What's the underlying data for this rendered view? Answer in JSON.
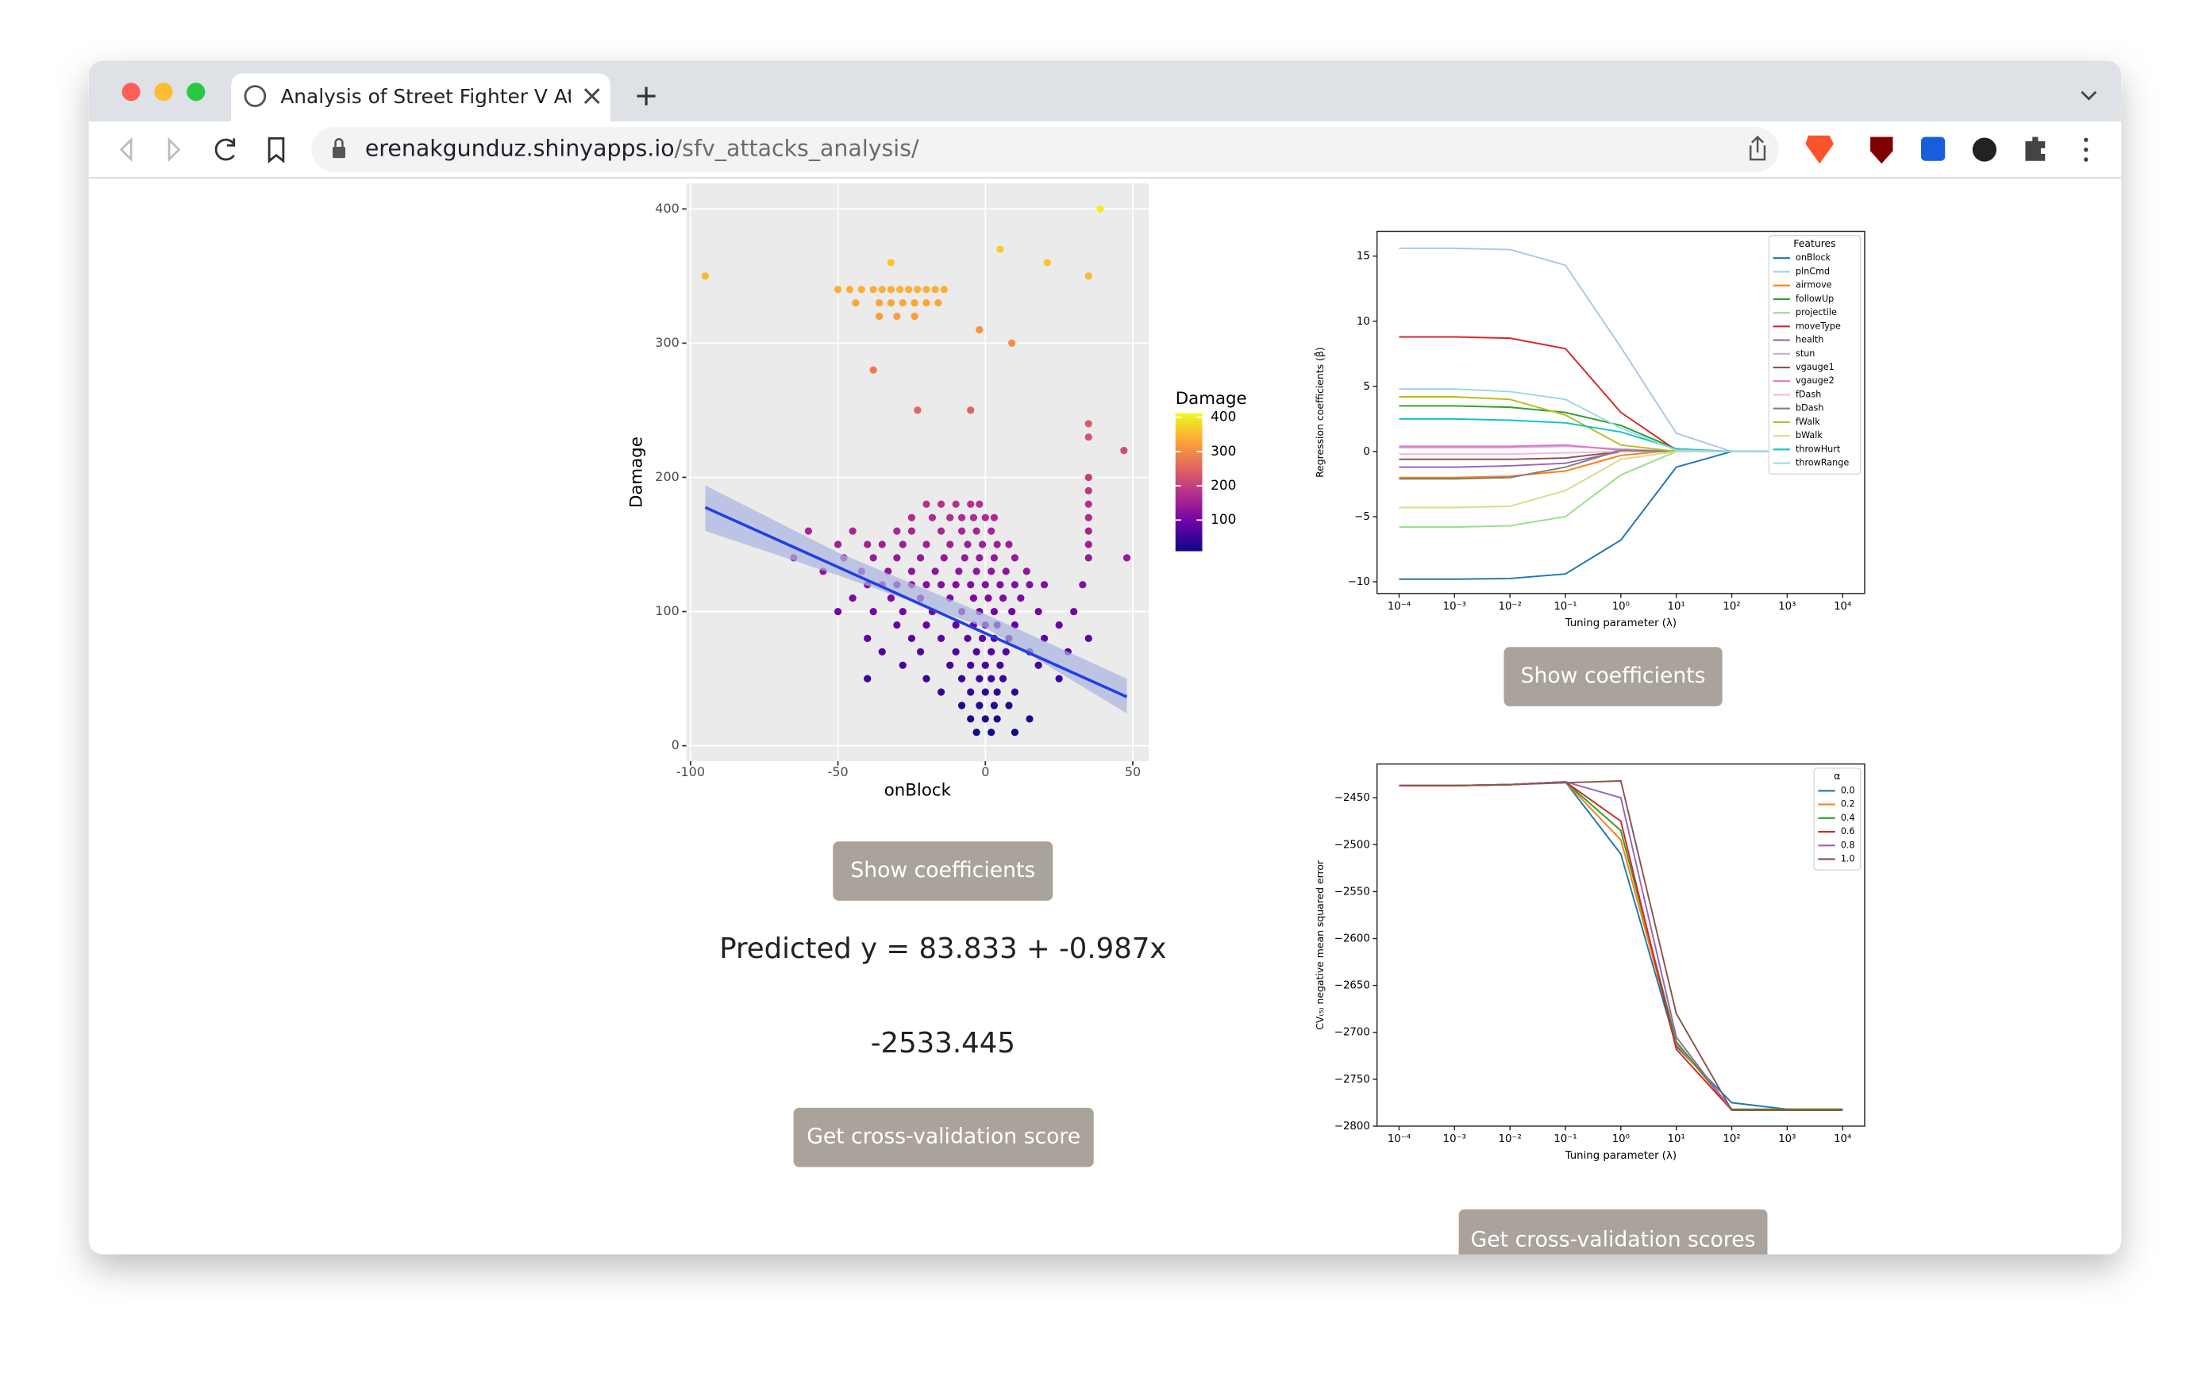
{
  "browser": {
    "tab_title": "Analysis of Street Fighter V Atta",
    "url_host": "erenakgunduz.shinyapps.io",
    "url_path": "/sfv_attacks_analysis/"
  },
  "app": {
    "show_coef_button": "Show coefficients",
    "prediction_text": "Predicted y = 83.833 + -0.987x",
    "cv_score": -2533.445,
    "cv_button": "Get cross-validation score",
    "show_coef_button_2": "Show coefficients",
    "cv_scores_button": "Get cross-validation scores"
  },
  "chart_data": [
    {
      "type": "scatter",
      "x_label": "onBlock",
      "y_label": "Damage",
      "xlim": [
        -101.4,
        55.4
      ],
      "ylim": [
        -11.5,
        419
      ],
      "xticks": [
        -100,
        -50,
        0,
        50
      ],
      "yticks": [
        0,
        100,
        200,
        300,
        400
      ],
      "grid": true,
      "x": [
        -95,
        -50,
        -46,
        -42,
        -38,
        -35,
        -32,
        -29,
        -26,
        -23,
        -20,
        -17,
        -14,
        -44,
        -36,
        -32,
        -28,
        -24,
        -20,
        -16,
        -36,
        -30,
        -24,
        -32,
        -38,
        -23,
        -2,
        5,
        9,
        21,
        35,
        39,
        35,
        35,
        47,
        48,
        -5,
        35,
        35,
        35,
        35,
        35,
        35,
        35,
        -20,
        -15,
        -10,
        -5,
        -2,
        -25,
        -18,
        -12,
        -8,
        -4,
        0,
        3,
        -60,
        -45,
        -30,
        -25,
        -15,
        -8,
        -3,
        2,
        -50,
        -40,
        -35,
        -28,
        -20,
        -12,
        -6,
        -1,
        4,
        8,
        -65,
        -48,
        -38,
        -30,
        -22,
        -14,
        -7,
        -2,
        3,
        10,
        -55,
        -42,
        -33,
        -25,
        -17,
        -9,
        -3,
        2,
        7,
        14,
        -40,
        -35,
        -30,
        -25,
        -20,
        -15,
        -10,
        -5,
        0,
        5,
        10,
        15,
        20,
        33,
        -45,
        -32,
        -22,
        -12,
        -4,
        1,
        6,
        12,
        -50,
        -38,
        -28,
        -18,
        -8,
        -2,
        3,
        9,
        18,
        30,
        -30,
        -20,
        -10,
        -4,
        0,
        4,
        10,
        25,
        -40,
        -25,
        -15,
        -6,
        -1,
        3,
        8,
        20,
        35,
        -35,
        -22,
        -10,
        -3,
        2,
        7,
        15,
        28,
        -28,
        -12,
        -5,
        0,
        5,
        18,
        -40,
        -20,
        -8,
        -2,
        2,
        6,
        25,
        -15,
        -5,
        0,
        4,
        10,
        -8,
        -2,
        3,
        8,
        -5,
        0,
        4,
        15,
        -3,
        2,
        10
      ],
      "values": [
        350,
        340,
        340,
        340,
        340,
        340,
        340,
        340,
        340,
        340,
        340,
        340,
        340,
        330,
        330,
        330,
        330,
        330,
        330,
        330,
        320,
        320,
        320,
        360,
        280,
        250,
        310,
        370,
        300,
        360,
        350,
        400,
        240,
        230,
        220,
        140,
        250,
        200,
        190,
        180,
        170,
        160,
        150,
        140,
        180,
        180,
        180,
        180,
        180,
        170,
        170,
        170,
        170,
        170,
        170,
        170,
        160,
        160,
        160,
        160,
        160,
        160,
        160,
        160,
        150,
        150,
        150,
        150,
        150,
        150,
        150,
        150,
        150,
        150,
        140,
        140,
        140,
        140,
        140,
        140,
        140,
        140,
        140,
        140,
        130,
        130,
        130,
        130,
        130,
        130,
        130,
        130,
        130,
        130,
        120,
        120,
        120,
        120,
        120,
        120,
        120,
        120,
        120,
        120,
        120,
        120,
        120,
        120,
        110,
        110,
        110,
        110,
        110,
        110,
        110,
        110,
        100,
        100,
        100,
        100,
        100,
        100,
        100,
        100,
        100,
        100,
        90,
        90,
        90,
        90,
        90,
        90,
        90,
        90,
        80,
        80,
        80,
        80,
        80,
        80,
        80,
        80,
        80,
        70,
        70,
        70,
        70,
        70,
        70,
        70,
        70,
        60,
        60,
        60,
        60,
        60,
        60,
        50,
        50,
        50,
        50,
        50,
        50,
        50,
        40,
        40,
        40,
        40,
        40,
        30,
        30,
        30,
        30,
        20,
        20,
        20,
        20,
        10,
        10,
        10
      ],
      "regression_line": {
        "color": "#1f3fe6",
        "x": [
          -95,
          48
        ],
        "values": [
          177.6,
          36.4
        ]
      },
      "confidence_band": {
        "color": "#a9b3e0",
        "x": [
          -95,
          -50,
          0,
          48
        ],
        "lower": [
          160,
          127,
          88,
          24
        ],
        "upper": [
          194,
          144,
          98,
          50
        ]
      },
      "colorbar": {
        "title": "Damage",
        "lim": [
          9,
          412
        ],
        "ticks": [
          100,
          200,
          300,
          400
        ]
      }
    },
    {
      "type": "line",
      "x_label": "Tuning parameter (λ)",
      "y_label": "Regression coefficients (β̂)",
      "xscale": "log",
      "xlim": [
        4e-05,
        25000
      ],
      "ylim": [
        -10.9,
        16.9
      ],
      "xticks": [
        {
          "value": 0.0001,
          "label": "10⁻⁴"
        },
        {
          "value": 0.001,
          "label": "10⁻³"
        },
        {
          "value": 0.01,
          "label": "10⁻²"
        },
        {
          "value": 0.1,
          "label": "10⁻¹"
        },
        {
          "value": 1,
          "label": "10⁰"
        },
        {
          "value": 10,
          "label": "10¹"
        },
        {
          "value": 100,
          "label": "10²"
        },
        {
          "value": 1000,
          "label": "10³"
        },
        {
          "value": 10000,
          "label": "10⁴"
        }
      ],
      "yticks": [
        {
          "value": -10,
          "label": "−10"
        },
        {
          "value": -5,
          "label": "−5"
        },
        0,
        5,
        10,
        15
      ],
      "legend_title": "Features",
      "legend": "upper right",
      "x": [
        0.0001,
        0.001,
        0.01,
        0.1,
        1,
        10,
        100,
        1000,
        10000
      ],
      "series": [
        {
          "name": "onBlock",
          "color": "#1f77b4",
          "values": [
            -9.8,
            -9.8,
            -9.75,
            -9.4,
            -6.8,
            -1.2,
            0,
            0,
            0
          ]
        },
        {
          "name": "plnCmd",
          "color": "#aec7e8",
          "values": [
            15.6,
            15.6,
            15.5,
            14.3,
            8,
            1.4,
            0,
            0,
            0
          ]
        },
        {
          "name": "airmove",
          "color": "#ff7f0e",
          "values": [
            -2,
            -2,
            -1.9,
            -1.5,
            -0.3,
            0.1,
            0,
            0,
            0
          ]
        },
        {
          "name": "followUp",
          "color": "#2ca02c",
          "values": [
            3.5,
            3.5,
            3.4,
            3,
            2,
            0.2,
            0,
            0,
            0
          ]
        },
        {
          "name": "projectile",
          "color": "#98df8a",
          "values": [
            -5.8,
            -5.8,
            -5.7,
            -5,
            -1.8,
            0,
            0,
            0,
            0
          ]
        },
        {
          "name": "moveType",
          "color": "#d62728",
          "values": [
            8.8,
            8.8,
            8.7,
            7.9,
            3,
            0.1,
            0,
            0,
            0
          ]
        },
        {
          "name": "health",
          "color": "#9467bd",
          "values": [
            -1.2,
            -1.2,
            -1.1,
            -0.9,
            0,
            0,
            0,
            0,
            0
          ]
        },
        {
          "name": "stun",
          "color": "#c5b0d5",
          "values": [
            0.3,
            0.3,
            0.3,
            0.4,
            0.2,
            0,
            0,
            0,
            0
          ]
        },
        {
          "name": "vgauge1",
          "color": "#8c564b",
          "values": [
            -0.6,
            -0.6,
            -0.6,
            -0.5,
            0,
            0,
            0,
            0,
            0
          ]
        },
        {
          "name": "vgauge2",
          "color": "#e377c2",
          "values": [
            0.4,
            0.4,
            0.4,
            0.5,
            0.1,
            0,
            0,
            0,
            0
          ]
        },
        {
          "name": "fDash",
          "color": "#f7b6d2",
          "values": [
            -0.2,
            -0.2,
            -0.2,
            -0.1,
            0,
            0,
            0,
            0,
            0
          ]
        },
        {
          "name": "bDash",
          "color": "#7f7f7f",
          "values": [
            -2.1,
            -2.1,
            -2,
            -1.2,
            0.1,
            0,
            0,
            0,
            0
          ]
        },
        {
          "name": "fWalk",
          "color": "#bcbd22",
          "values": [
            4.2,
            4.2,
            4,
            2.8,
            0.5,
            0,
            0,
            0,
            0
          ]
        },
        {
          "name": "bWalk",
          "color": "#dbdb8d",
          "values": [
            -4.3,
            -4.3,
            -4.2,
            -3,
            -0.6,
            0,
            0,
            0,
            0
          ]
        },
        {
          "name": "throwHurt",
          "color": "#17becf",
          "values": [
            2.5,
            2.5,
            2.4,
            2.2,
            1.5,
            0.2,
            0,
            0,
            0
          ]
        },
        {
          "name": "throwRange",
          "color": "#9edae5",
          "values": [
            4.8,
            4.8,
            4.6,
            4,
            1.8,
            0.1,
            0,
            0,
            0
          ]
        }
      ]
    },
    {
      "type": "line",
      "x_label": "Tuning parameter (λ)",
      "y_label": "CV₍₅₎ negative mean squared error",
      "xscale": "log",
      "xlim": [
        4e-05,
        25000
      ],
      "ylim": [
        -2800,
        -2414
      ],
      "xticks": [
        {
          "value": 0.0001,
          "label": "10⁻⁴"
        },
        {
          "value": 0.001,
          "label": "10⁻³"
        },
        {
          "value": 0.01,
          "label": "10⁻²"
        },
        {
          "value": 0.1,
          "label": "10⁻¹"
        },
        {
          "value": 1,
          "label": "10⁰"
        },
        {
          "value": 10,
          "label": "10¹"
        },
        {
          "value": 100,
          "label": "10²"
        },
        {
          "value": 1000,
          "label": "10³"
        },
        {
          "value": 10000,
          "label": "10⁴"
        }
      ],
      "yticks": [
        {
          "value": -2450,
          "label": "−2450"
        },
        {
          "value": -2500,
          "label": "−2500"
        },
        {
          "value": -2550,
          "label": "−2550"
        },
        {
          "value": -2600,
          "label": "−2600"
        },
        {
          "value": -2650,
          "label": "−2650"
        },
        {
          "value": -2700,
          "label": "−2700"
        },
        {
          "value": -2750,
          "label": "−2750"
        },
        {
          "value": -2800,
          "label": "−2800"
        }
      ],
      "legend_title": "α",
      "legend": "upper right",
      "x": [
        0.0001,
        0.001,
        0.01,
        0.1,
        1,
        10,
        100,
        1000,
        10000
      ],
      "series": [
        {
          "name": "0.0",
          "color": "#1f77b4",
          "values": [
            -2437,
            -2437,
            -2436,
            -2433,
            -2510,
            -2715,
            -2775,
            -2782,
            -2782
          ]
        },
        {
          "name": "0.2",
          "color": "#ff7f0e",
          "values": [
            -2437,
            -2437,
            -2436,
            -2433,
            -2495,
            -2712,
            -2782,
            -2782,
            -2782
          ]
        },
        {
          "name": "0.4",
          "color": "#2ca02c",
          "values": [
            -2437,
            -2437,
            -2436,
            -2433,
            -2485,
            -2710,
            -2782,
            -2782,
            -2782
          ]
        },
        {
          "name": "0.6",
          "color": "#d62728",
          "values": [
            -2437,
            -2437,
            -2436,
            -2433,
            -2475,
            -2718,
            -2783,
            -2783,
            -2783
          ]
        },
        {
          "name": "0.8",
          "color": "#9467bd",
          "values": [
            -2437,
            -2437,
            -2436,
            -2433,
            -2450,
            -2705,
            -2783,
            -2783,
            -2783
          ]
        },
        {
          "name": "1.0",
          "color": "#8c564b",
          "values": [
            -2437,
            -2437,
            -2436,
            -2434,
            -2432,
            -2680,
            -2783,
            -2783,
            -2783
          ]
        }
      ]
    }
  ]
}
